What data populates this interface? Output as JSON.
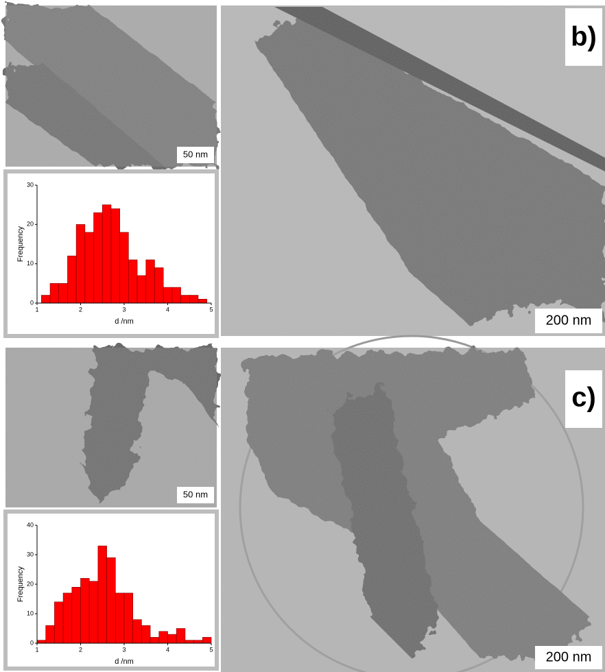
{
  "chart_data": [
    {
      "type": "histogram",
      "xlabel": "d /nm",
      "ylabel": "Frequency",
      "bins": [
        1.1,
        1.3,
        1.5,
        1.7,
        1.9,
        2.1,
        2.3,
        2.5,
        2.7,
        2.9,
        3.1,
        3.3,
        3.5,
        3.7,
        3.9,
        4.1,
        4.3,
        4.5,
        4.7,
        4.9
      ],
      "values": [
        2,
        5,
        5,
        12,
        20,
        18,
        23,
        25,
        24,
        18,
        11,
        7,
        11,
        9,
        4,
        4,
        2,
        2,
        1
      ],
      "color": "#ff0000",
      "xlim": [
        1,
        5
      ],
      "xticks": [
        1,
        2,
        3,
        4,
        5
      ],
      "ylim": [
        0,
        30
      ],
      "yticks": [
        0,
        10,
        20,
        30
      ]
    },
    {
      "type": "histogram",
      "xlabel": "d /nm",
      "ylabel": "Frequency",
      "bins": [
        1.0,
        1.2,
        1.4,
        1.6,
        1.8,
        2.0,
        2.2,
        2.4,
        2.6,
        2.8,
        3.0,
        3.2,
        3.4,
        3.6,
        3.8,
        4.0,
        4.2,
        4.4,
        4.6,
        4.8,
        5.0
      ],
      "values": [
        1,
        6,
        14,
        17,
        19,
        22,
        21,
        33,
        29,
        17,
        17,
        8,
        6,
        2,
        4,
        3,
        5,
        1,
        1,
        2
      ],
      "color": "#ff0000",
      "xlim": [
        1,
        5
      ],
      "xticks": [
        1,
        2,
        3,
        4,
        5
      ],
      "ylim": [
        0,
        40
      ],
      "yticks": [
        0,
        10,
        20,
        30,
        40
      ]
    }
  ],
  "panels": [
    {
      "label": "b)",
      "small_scale": "50 nm",
      "large_scale": "200 nm"
    },
    {
      "label": "c)",
      "small_scale": "50 nm",
      "large_scale": "200 nm"
    }
  ]
}
